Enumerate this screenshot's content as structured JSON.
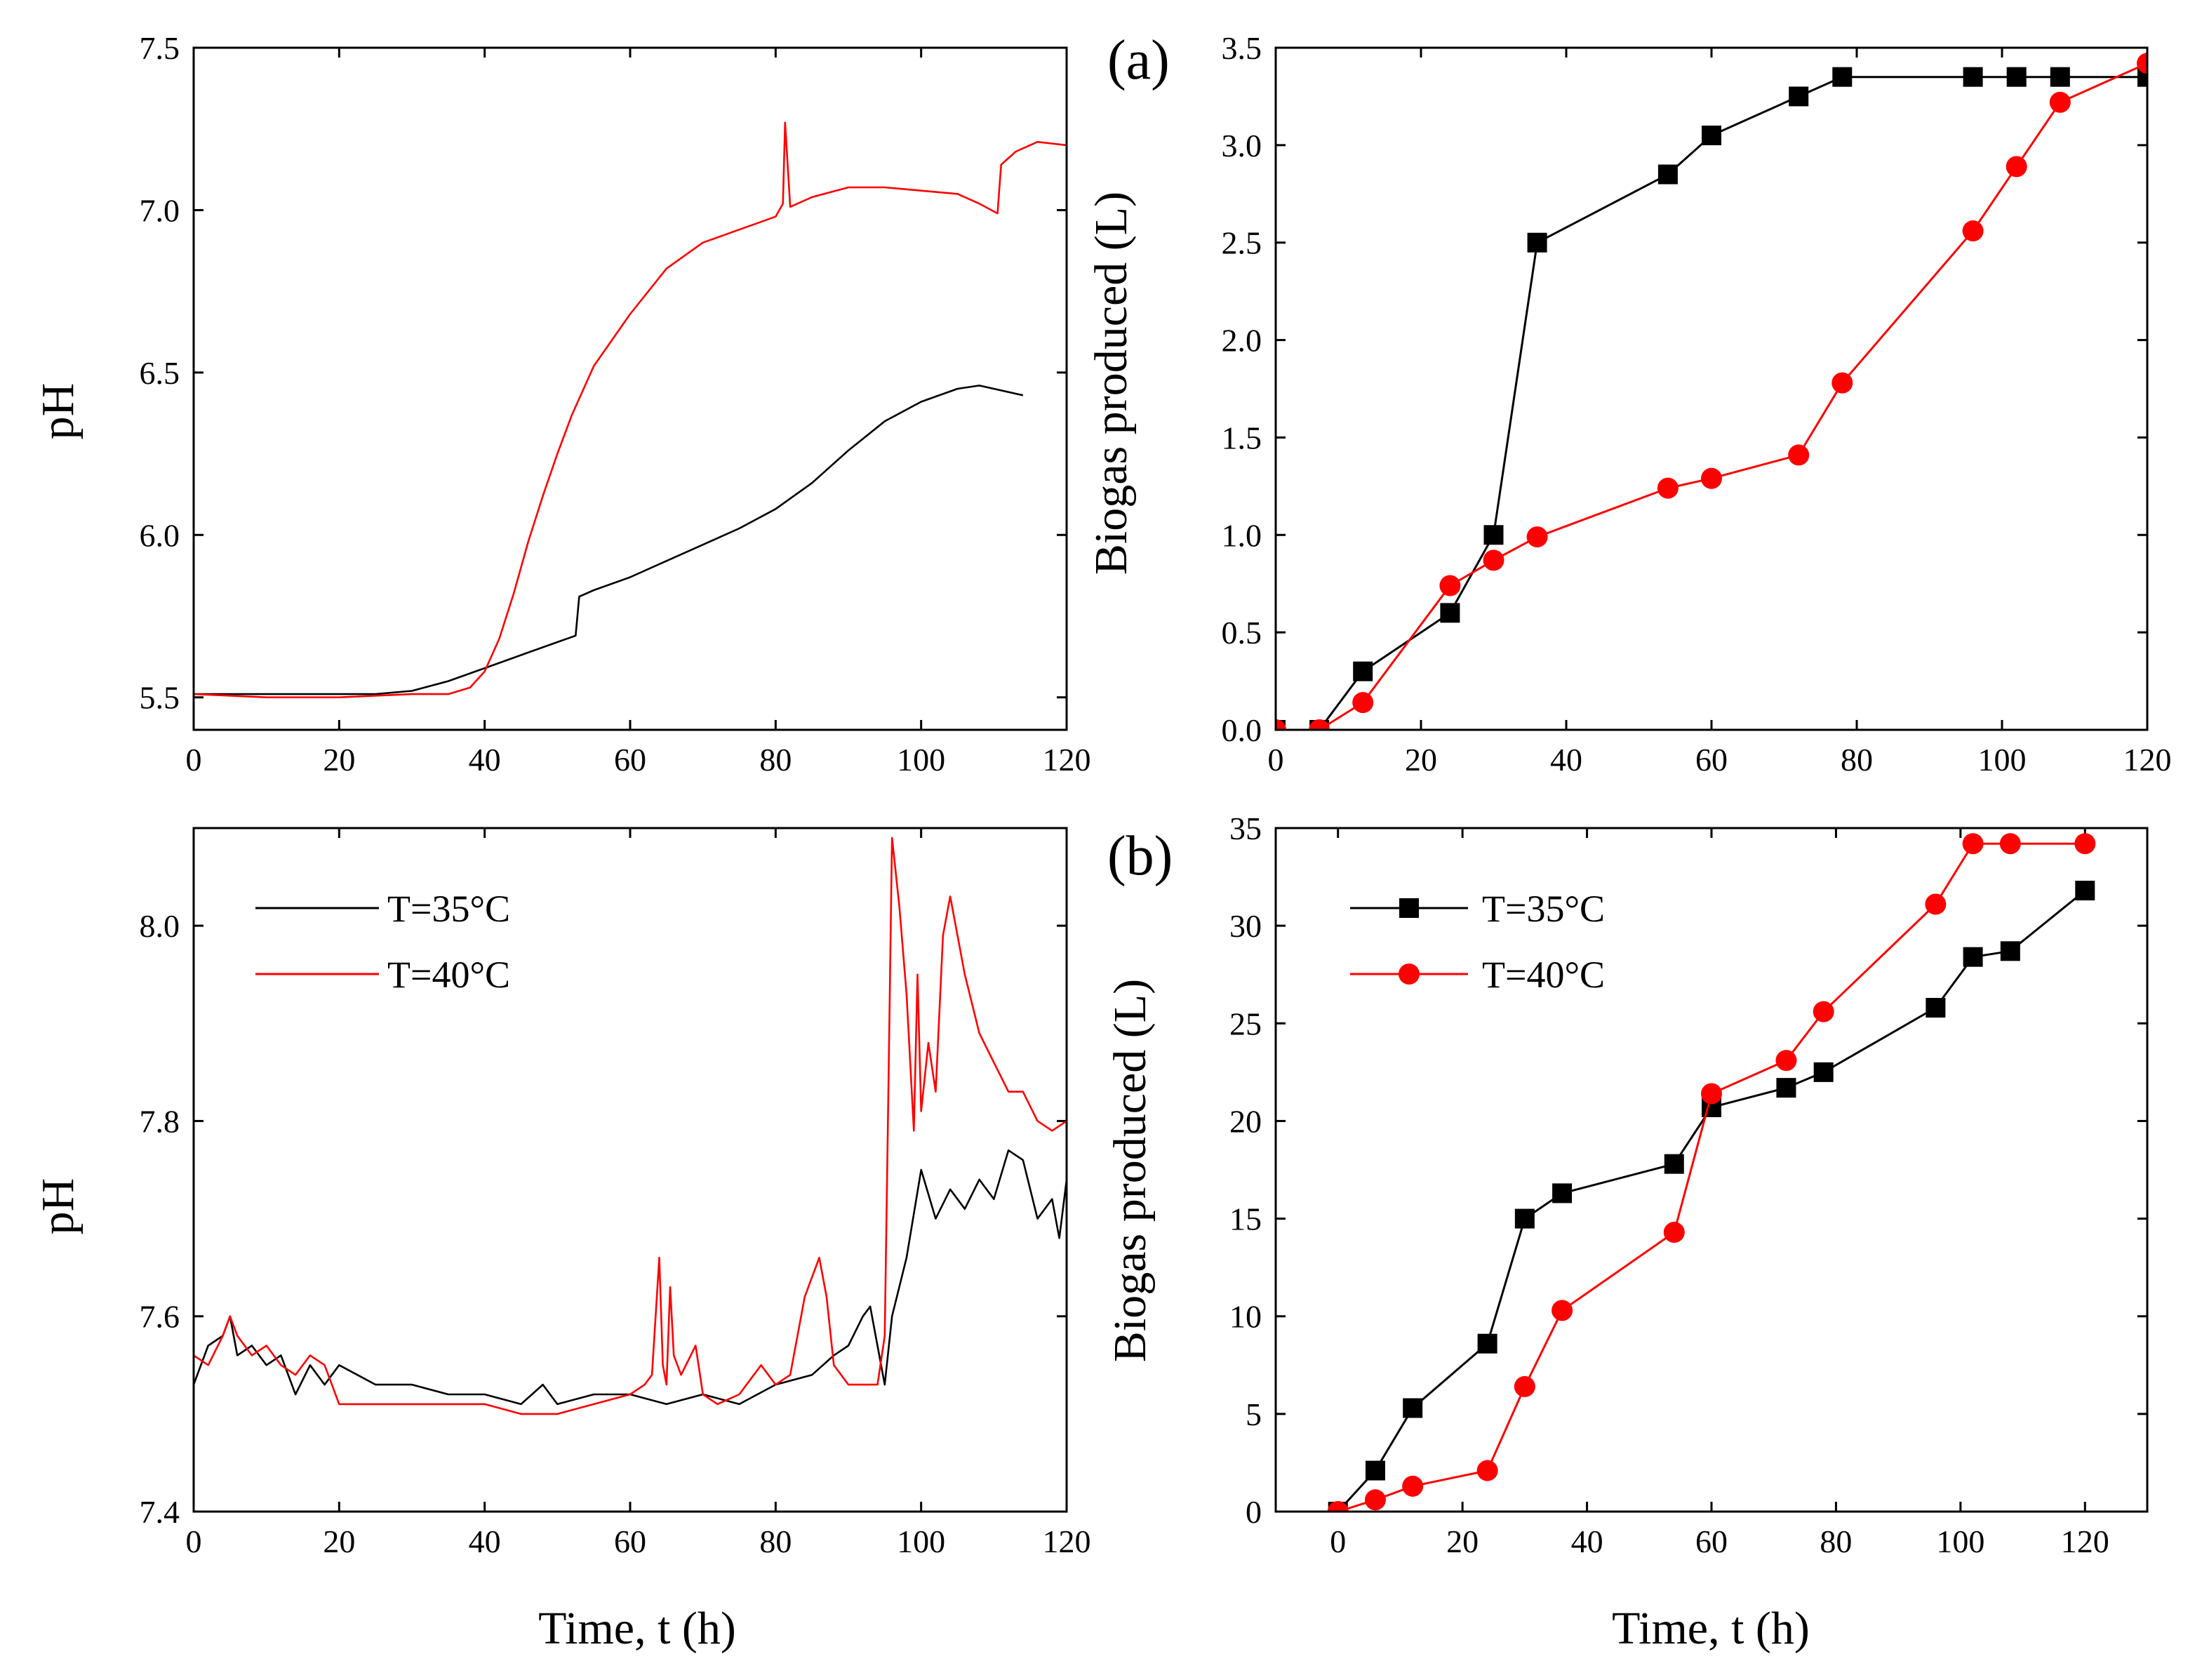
{
  "colors": {
    "black": "#000000",
    "red": "#ff0000"
  },
  "chart_data": [
    {
      "id": "ph-a",
      "type": "line",
      "title": "",
      "xlabel": "",
      "ylabel": "pH",
      "xlim": [
        0,
        120
      ],
      "ylim": [
        5.4,
        7.5
      ],
      "xticks": [
        0,
        20,
        40,
        60,
        80,
        100,
        120
      ],
      "xtick_labels": [
        "0",
        "20",
        "40",
        "60",
        "80",
        "100",
        "120"
      ],
      "yticks": [
        5.5,
        6.0,
        6.5,
        7.0,
        7.5
      ],
      "ytick_labels": [
        "5.5",
        "6.0",
        "6.5",
        "7.0",
        "7.5"
      ],
      "series": [
        {
          "name": "T=35°C",
          "color": "#000000",
          "x": [
            0,
            10,
            20,
            25,
            30,
            35,
            40,
            45,
            50,
            52.5,
            53,
            55,
            60,
            65,
            70,
            75,
            80,
            85,
            90,
            95,
            100,
            105,
            108,
            110,
            114
          ],
          "y": [
            5.51,
            5.51,
            5.51,
            5.51,
            5.52,
            5.55,
            5.59,
            5.63,
            5.67,
            5.69,
            5.81,
            5.83,
            5.87,
            5.92,
            5.97,
            6.02,
            6.08,
            6.16,
            6.26,
            6.35,
            6.41,
            6.45,
            6.46,
            6.45,
            6.43
          ]
        },
        {
          "name": "T=40°C",
          "color": "#ff0000",
          "x": [
            0,
            10,
            20,
            30,
            35,
            38,
            40,
            42,
            44,
            46,
            48,
            50,
            52,
            55,
            60,
            65,
            70,
            75,
            80,
            81,
            81.3,
            82,
            85,
            90,
            95,
            100,
            105,
            108,
            110.5,
            111,
            113,
            116,
            120
          ],
          "y": [
            5.51,
            5.5,
            5.5,
            5.51,
            5.51,
            5.53,
            5.58,
            5.68,
            5.82,
            5.98,
            6.12,
            6.25,
            6.37,
            6.52,
            6.68,
            6.82,
            6.9,
            6.94,
            6.98,
            7.02,
            7.27,
            7.01,
            7.04,
            7.07,
            7.07,
            7.06,
            7.05,
            7.02,
            6.99,
            7.14,
            7.18,
            7.21,
            7.2
          ]
        }
      ]
    },
    {
      "id": "bio-a",
      "type": "line",
      "title": "",
      "xlabel": "",
      "ylabel": "Biogas produced (L)",
      "xlim": [
        0,
        120
      ],
      "ylim": [
        0,
        3.5
      ],
      "xticks": [
        0,
        20,
        40,
        60,
        80,
        100,
        120
      ],
      "xtick_labels": [
        "0",
        "20",
        "40",
        "60",
        "80",
        "100",
        "120"
      ],
      "yticks": [
        0,
        0.5,
        1.0,
        1.5,
        2.0,
        2.5,
        3.0,
        3.5
      ],
      "ytick_labels": [
        "0.0",
        "0.5",
        "1.0",
        "1.5",
        "2.0",
        "2.5",
        "3.0",
        "3.5"
      ],
      "annotation": "(a)",
      "series": [
        {
          "name": "T=35°C",
          "color": "#000000",
          "marker": "square",
          "x": [
            0,
            6,
            12,
            24,
            30,
            36,
            54,
            60,
            72,
            78,
            96,
            102,
            108,
            120
          ],
          "y": [
            0,
            0,
            0.3,
            0.6,
            1.0,
            2.5,
            2.85,
            3.05,
            3.25,
            3.35,
            3.35,
            3.35,
            3.35,
            3.35
          ]
        },
        {
          "name": "T=40°C",
          "color": "#ff0000",
          "marker": "circle",
          "x": [
            0,
            6,
            12,
            24,
            30,
            36,
            54,
            60,
            72,
            78,
            96,
            102,
            108,
            120
          ],
          "y": [
            0,
            0,
            0.14,
            0.74,
            0.87,
            0.99,
            1.24,
            1.29,
            1.41,
            1.78,
            2.56,
            2.89,
            3.22,
            3.42
          ]
        }
      ]
    },
    {
      "id": "ph-b",
      "type": "line",
      "title": "",
      "xlabel": "Time, t (h)",
      "ylabel": "pH",
      "xlim": [
        0,
        120
      ],
      "ylim": [
        7.4,
        8.1
      ],
      "xticks": [
        0,
        20,
        40,
        60,
        80,
        100,
        120
      ],
      "xtick_labels": [
        "0",
        "20",
        "40",
        "60",
        "80",
        "100",
        "120"
      ],
      "yticks": [
        7.4,
        7.6,
        7.8,
        8.0
      ],
      "ytick_labels": [
        "7.4",
        "7.6",
        "7.8",
        "8.0"
      ],
      "legend": {
        "position": "top-left",
        "entries": [
          "T=35°C",
          "T=40°C"
        ]
      },
      "series": [
        {
          "name": "T=35°C",
          "color": "#000000",
          "x": [
            0,
            2,
            4,
            5,
            6,
            8,
            10,
            12,
            14,
            16,
            18,
            20,
            25,
            30,
            35,
            40,
            45,
            48,
            50,
            55,
            60,
            65,
            70,
            75,
            80,
            85,
            88,
            90,
            92,
            93,
            95,
            96,
            98,
            100,
            102,
            104,
            106,
            108,
            110,
            112,
            114,
            116,
            118,
            119,
            120
          ],
          "y": [
            7.53,
            7.57,
            7.58,
            7.6,
            7.56,
            7.57,
            7.55,
            7.56,
            7.52,
            7.55,
            7.53,
            7.55,
            7.53,
            7.53,
            7.52,
            7.52,
            7.51,
            7.53,
            7.51,
            7.52,
            7.52,
            7.51,
            7.52,
            7.51,
            7.53,
            7.54,
            7.56,
            7.57,
            7.6,
            7.61,
            7.53,
            7.6,
            7.66,
            7.75,
            7.7,
            7.73,
            7.71,
            7.74,
            7.72,
            7.77,
            7.76,
            7.7,
            7.72,
            7.68,
            7.74
          ]
        },
        {
          "name": "T=40°C",
          "color": "#ff0000",
          "x": [
            0,
            2,
            4,
            5,
            6,
            8,
            10,
            12,
            14,
            16,
            18,
            20,
            25,
            30,
            35,
            40,
            45,
            50,
            55,
            60,
            62,
            63,
            64,
            64.5,
            65,
            65.5,
            66,
            67,
            69,
            70,
            72,
            75,
            78,
            80,
            82,
            84,
            86,
            87,
            88,
            90,
            93,
            94,
            95,
            95.5,
            96,
            97,
            98,
            99,
            99.5,
            100,
            101,
            102,
            103,
            104,
            106,
            108,
            110,
            112,
            114,
            116,
            118,
            120
          ],
          "y": [
            7.56,
            7.55,
            7.58,
            7.6,
            7.58,
            7.56,
            7.57,
            7.55,
            7.54,
            7.56,
            7.55,
            7.51,
            7.51,
            7.51,
            7.51,
            7.51,
            7.5,
            7.5,
            7.51,
            7.52,
            7.53,
            7.54,
            7.66,
            7.55,
            7.53,
            7.63,
            7.56,
            7.54,
            7.57,
            7.52,
            7.51,
            7.52,
            7.55,
            7.53,
            7.54,
            7.62,
            7.66,
            7.62,
            7.55,
            7.53,
            7.53,
            7.53,
            7.58,
            7.83,
            8.09,
            8.02,
            7.93,
            7.79,
            7.95,
            7.81,
            7.88,
            7.83,
            7.99,
            8.03,
            7.95,
            7.89,
            7.86,
            7.83,
            7.83,
            7.8,
            7.79,
            7.8
          ]
        }
      ]
    },
    {
      "id": "bio-b",
      "type": "line",
      "title": "",
      "xlabel": "Time, t (h)",
      "ylabel": "Biogas produced (L)",
      "xlim": [
        -10,
        130
      ],
      "ylim": [
        0,
        35
      ],
      "xticks": [
        0,
        20,
        40,
        60,
        80,
        100,
        120
      ],
      "xtick_labels": [
        "0",
        "20",
        "40",
        "60",
        "80",
        "100",
        "120"
      ],
      "yticks": [
        0,
        5,
        10,
        15,
        20,
        25,
        30,
        35
      ],
      "ytick_labels": [
        "0",
        "5",
        "10",
        "15",
        "20",
        "25",
        "30",
        "35"
      ],
      "annotation": "(b)",
      "legend": {
        "position": "top-left",
        "entries": [
          "T=35°C",
          "T=40°C"
        ]
      },
      "series": [
        {
          "name": "T=35°C",
          "color": "#000000",
          "marker": "square",
          "x": [
            0,
            6,
            12,
            24,
            30,
            36,
            54,
            60,
            72,
            78,
            96,
            102,
            108,
            120
          ],
          "y": [
            0,
            2.1,
            5.3,
            8.6,
            15.0,
            16.3,
            17.8,
            20.7,
            21.7,
            22.5,
            25.8,
            28.4,
            28.7,
            31.8
          ]
        },
        {
          "name": "T=40°C",
          "color": "#ff0000",
          "marker": "circle",
          "x": [
            0,
            6,
            12,
            24,
            30,
            36,
            54,
            60,
            72,
            78,
            96,
            102,
            108,
            120
          ],
          "y": [
            0,
            0.6,
            1.3,
            2.1,
            6.4,
            10.3,
            14.3,
            21.4,
            23.1,
            25.6,
            31.1,
            34.2,
            34.2,
            34.2
          ]
        }
      ]
    }
  ]
}
